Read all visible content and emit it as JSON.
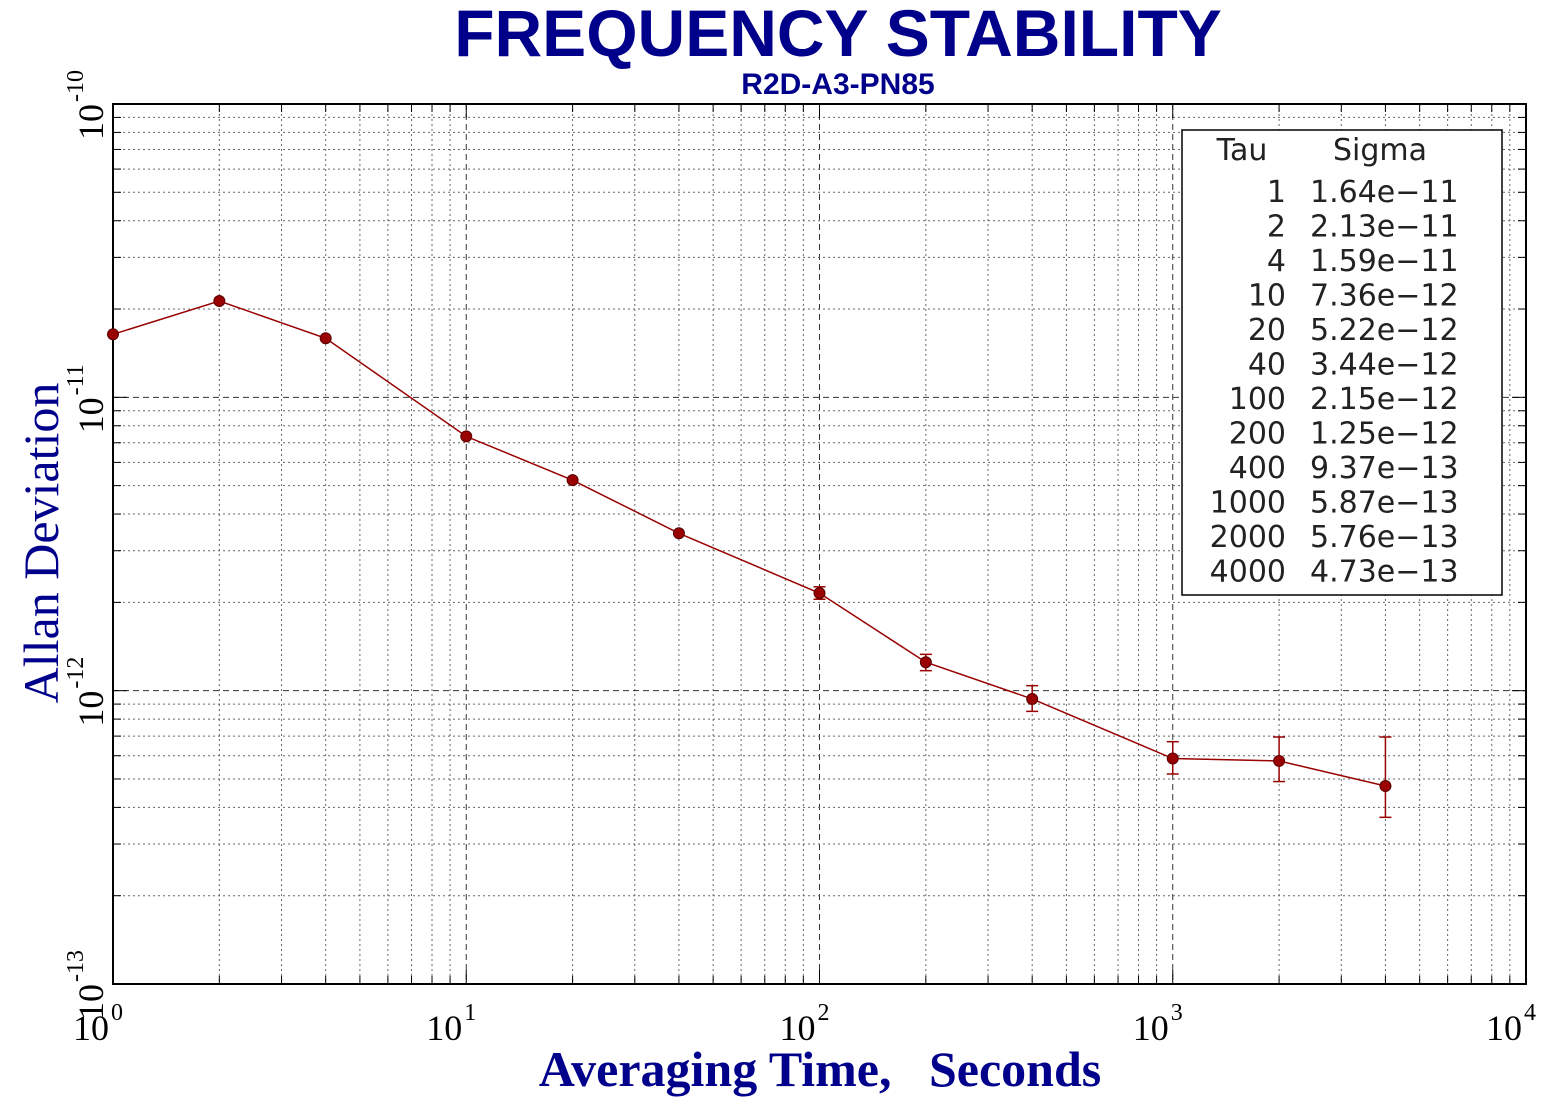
{
  "chart_data": {
    "type": "line",
    "title": "FREQUENCY STABILITY",
    "subtitle": "R2D-A3-PN85",
    "xlabel": "Averaging Time,   Seconds",
    "ylabel": "Allan Deviation",
    "xscale": "log",
    "yscale": "log",
    "xlim": [
      1,
      10000
    ],
    "ylim": [
      1e-13,
      1e-10
    ],
    "x_ticks": [
      {
        "base": "10",
        "exp": "0",
        "value": 1
      },
      {
        "base": "10",
        "exp": "1",
        "value": 10
      },
      {
        "base": "10",
        "exp": "2",
        "value": 100
      },
      {
        "base": "10",
        "exp": "3",
        "value": 1000
      },
      {
        "base": "10",
        "exp": "4",
        "value": 10000
      }
    ],
    "y_ticks": [
      {
        "base": "10",
        "exp": "-10",
        "value": 1e-10
      },
      {
        "base": "10",
        "exp": "-11",
        "value": 1e-11
      },
      {
        "base": "10",
        "exp": "-12",
        "value": 1e-12
      },
      {
        "base": "10",
        "exp": "-13",
        "value": 1e-13
      }
    ],
    "grid": true,
    "series": [
      {
        "name": "Sigma",
        "color": "#990000",
        "x": [
          1,
          2,
          4,
          10,
          20,
          40,
          100,
          200,
          400,
          1000,
          2000,
          4000
        ],
        "y": [
          1.64e-11,
          2.13e-11,
          1.59e-11,
          7.36e-12,
          5.22e-12,
          3.44e-12,
          2.15e-12,
          1.25e-12,
          9.37e-13,
          5.87e-13,
          5.76e-13,
          4.73e-13
        ],
        "err_low": [
          null,
          null,
          null,
          null,
          null,
          null,
          2.05e-12,
          1.17e-12,
          8.5e-13,
          5.2e-13,
          4.9e-13,
          3.7e-13
        ],
        "err_high": [
          null,
          null,
          null,
          null,
          null,
          null,
          2.26e-12,
          1.33e-12,
          1.04e-12,
          6.7e-13,
          6.95e-13,
          6.95e-13
        ]
      }
    ],
    "legend": {
      "position": "top-right",
      "header_tau": "Tau",
      "header_sigma": "Sigma",
      "rows": [
        {
          "tau": "1",
          "sigma": "1.64e−11"
        },
        {
          "tau": "2",
          "sigma": "2.13e−11"
        },
        {
          "tau": "4",
          "sigma": "1.59e−11"
        },
        {
          "tau": "10",
          "sigma": "7.36e−12"
        },
        {
          "tau": "20",
          "sigma": "5.22e−12"
        },
        {
          "tau": "40",
          "sigma": "3.44e−12"
        },
        {
          "tau": "100",
          "sigma": "2.15e−12"
        },
        {
          "tau": "200",
          "sigma": "1.25e−12"
        },
        {
          "tau": "400",
          "sigma": "9.37e−13"
        },
        {
          "tau": "1000",
          "sigma": "5.87e−13"
        },
        {
          "tau": "2000",
          "sigma": "5.76e−13"
        },
        {
          "tau": "4000",
          "sigma": "4.73e−13"
        }
      ]
    },
    "colors": {
      "title": "#00008b",
      "axis_label": "#00008b",
      "series": "#990000"
    }
  }
}
